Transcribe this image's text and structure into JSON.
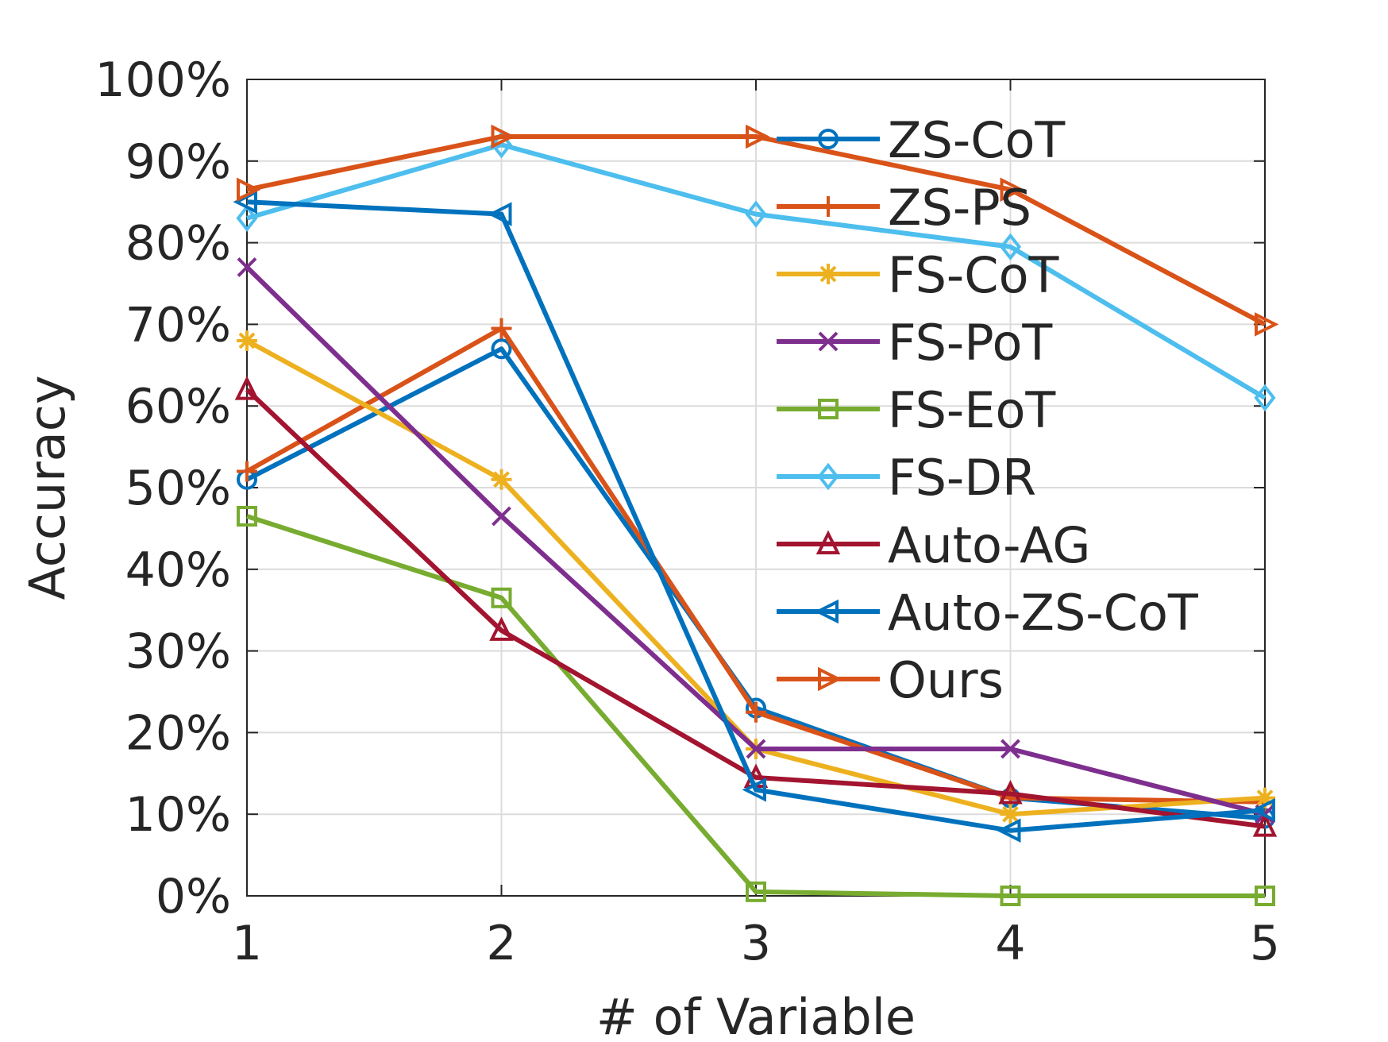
{
  "chart_data": {
    "type": "line",
    "title": "",
    "xlabel": "# of Variable",
    "ylabel": "Accuracy",
    "x": [
      1,
      2,
      3,
      4,
      5
    ],
    "xlim": [
      1,
      5
    ],
    "ylim": [
      0,
      100
    ],
    "y_ticks": [
      0,
      10,
      20,
      30,
      40,
      50,
      60,
      70,
      80,
      90,
      100
    ],
    "y_tick_labels": [
      "0%",
      "10%",
      "20%",
      "30%",
      "40%",
      "50%",
      "60%",
      "70%",
      "80%",
      "90%",
      "100%"
    ],
    "x_tick_labels": [
      "1",
      "2",
      "3",
      "4",
      "5"
    ],
    "grid": true,
    "legend_position": "top-right",
    "series": [
      {
        "name": "ZS-CoT",
        "color": "#0072BD",
        "marker": "circle",
        "values": [
          51,
          67,
          23,
          12,
          9.5
        ]
      },
      {
        "name": "ZS-PS",
        "color": "#D95319",
        "marker": "plus",
        "values": [
          52,
          69.5,
          22.5,
          12,
          11.5
        ]
      },
      {
        "name": "FS-CoT",
        "color": "#EDB120",
        "marker": "star",
        "values": [
          68,
          51,
          18,
          10,
          12
        ]
      },
      {
        "name": "FS-PoT",
        "color": "#7E2F8E",
        "marker": "x",
        "values": [
          77,
          46.5,
          18,
          18,
          10
        ]
      },
      {
        "name": "FS-EoT",
        "color": "#77AC30",
        "marker": "square",
        "values": [
          46.5,
          36.5,
          0.5,
          0,
          0
        ]
      },
      {
        "name": "FS-DR",
        "color": "#4DBEEE",
        "marker": "diamond",
        "values": [
          83,
          92,
          83.5,
          79.5,
          61
        ]
      },
      {
        "name": "Auto-AG",
        "color": "#A2142F",
        "marker": "triangle-up",
        "values": [
          62,
          32.5,
          14.5,
          12.5,
          8.5
        ]
      },
      {
        "name": "Auto-ZS-CoT",
        "color": "#0072BD",
        "marker": "triangle-left",
        "values": [
          85,
          83.5,
          13,
          8,
          10.5
        ]
      },
      {
        "name": "Ours",
        "color": "#D95319",
        "marker": "triangle-right",
        "values": [
          86.5,
          93,
          93,
          86.5,
          70
        ]
      }
    ]
  }
}
